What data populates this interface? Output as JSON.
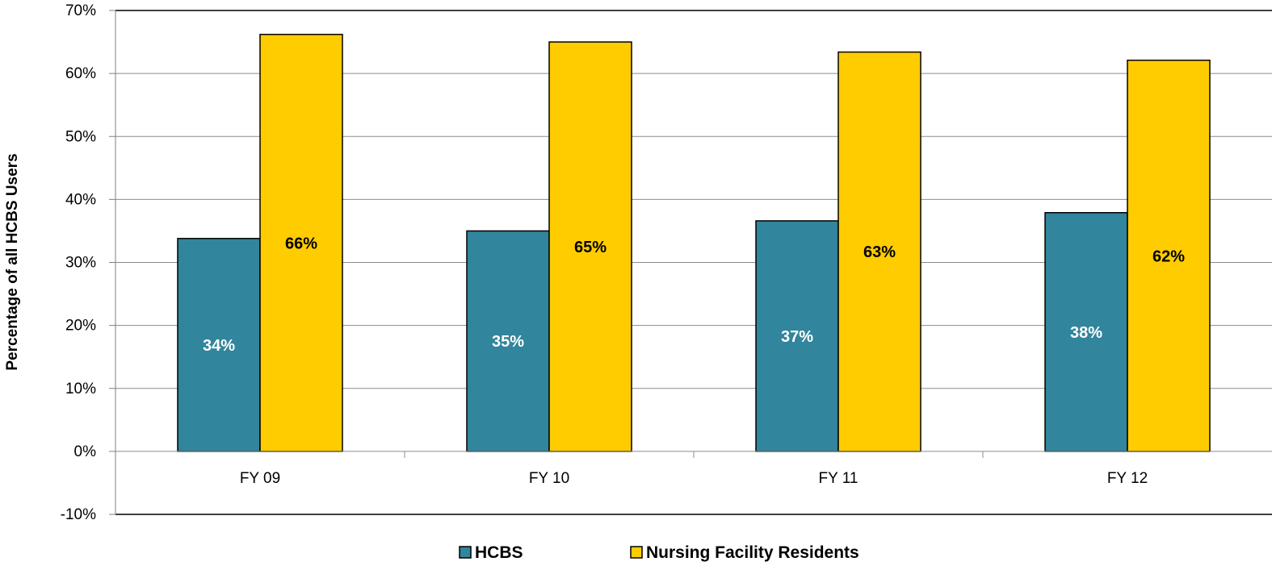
{
  "chart_data": {
    "type": "bar",
    "categories": [
      "FY 09",
      "FY 10",
      "FY 11",
      "FY 12"
    ],
    "series": [
      {
        "name": "HCBS",
        "values": [
          34,
          35,
          37,
          38
        ],
        "plot_values": [
          33.8,
          35.0,
          36.6,
          37.9
        ],
        "labels": [
          "34%",
          "35%",
          "37%",
          "38%"
        ],
        "color": "#31859C",
        "label_color": "#ffffff"
      },
      {
        "name": "Nursing Facility Residents",
        "values": [
          66,
          65,
          63,
          62
        ],
        "plot_values": [
          66.2,
          65.0,
          63.4,
          62.1
        ],
        "labels": [
          "66%",
          "65%",
          "63%",
          "62%"
        ],
        "color": "#FFCC00",
        "label_color": "#000000"
      }
    ],
    "ylabel": "Percentage of all HCBS Users",
    "ylim": [
      -10,
      70
    ],
    "ytick_step": 10,
    "ytick_labels": [
      "-10%",
      "0%",
      "10%",
      "20%",
      "30%",
      "40%",
      "50%",
      "60%",
      "70%"
    ],
    "grid": true,
    "legend_position": "bottom"
  }
}
